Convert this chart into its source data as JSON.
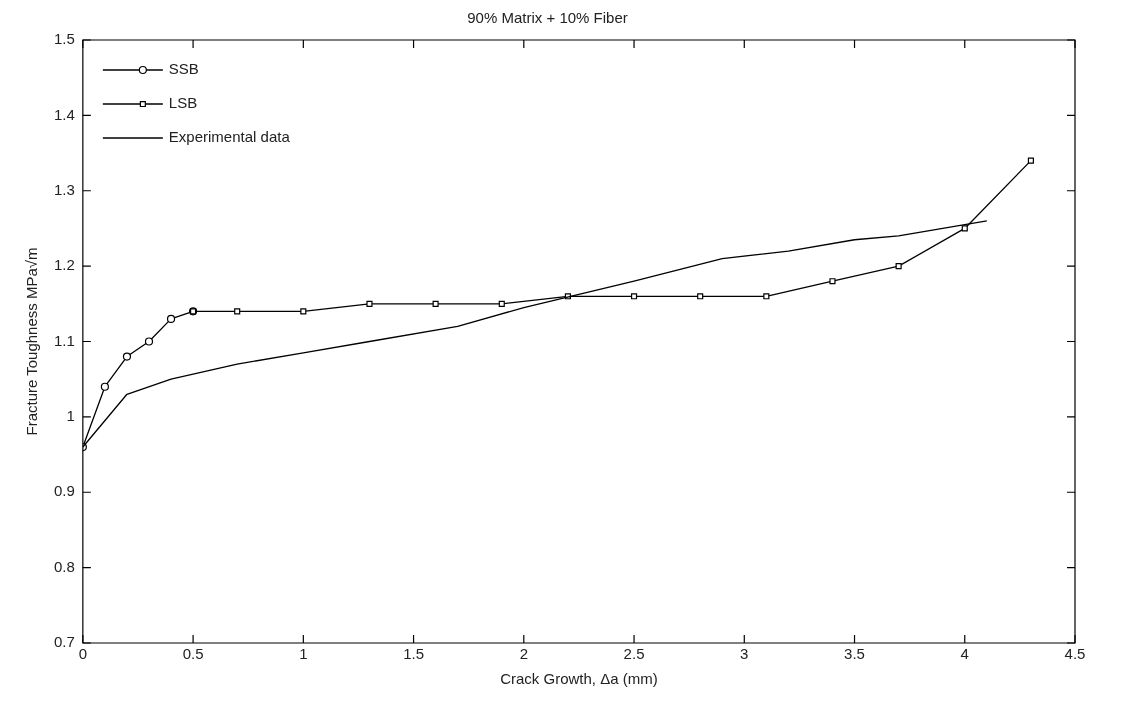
{
  "chart_data": {
    "type": "line",
    "title": "90% Matrix + 10% Fiber",
    "xlabel": "Crack Growth, Δa (mm)",
    "ylabel": "Fracture Toughness MPa√m",
    "xlim": [
      0,
      4.5
    ],
    "xticks": [
      0,
      0.5,
      1,
      1.5,
      2,
      2.5,
      3,
      3.5,
      4,
      4.5
    ],
    "ylim": [
      0.7,
      1.5
    ],
    "yticks": [
      {
        "value": 0.7,
        "label": "0.7"
      },
      {
        "value": 0.8,
        "label": "0.8"
      },
      {
        "value": 0.9,
        "label": "0.9"
      },
      {
        "value": 1,
        "label": "1"
      },
      {
        "value": 1.1,
        "label": "1.1"
      },
      {
        "value": 1.2,
        "label": "1.2"
      },
      {
        "value": 1.3,
        "label": "1.3"
      },
      {
        "value": 1.4,
        "label": "1.4"
      },
      {
        "value": 1.5,
        "label": "1.5"
      }
    ],
    "grid": false,
    "legend": "top left",
    "series": [
      {
        "name": "SSB",
        "color": "#000000",
        "marker": "circle",
        "x": [
          0,
          0.1,
          0.2,
          0.3,
          0.4,
          0.5
        ],
        "values": [
          0.96,
          1.04,
          1.08,
          1.1,
          1.13,
          1.14
        ]
      },
      {
        "name": "LSB",
        "color": "#000000",
        "marker": "square",
        "x": [
          0.5,
          0.7,
          1,
          1.3,
          1.6,
          1.9,
          2.2,
          2.5,
          2.8,
          3.1,
          3.4,
          3.7,
          4,
          4.3
        ],
        "values": [
          1.14,
          1.14,
          1.14,
          1.15,
          1.15,
          1.15,
          1.16,
          1.16,
          1.16,
          1.16,
          1.18,
          1.2,
          1.25,
          1.34
        ]
      },
      {
        "name": "Experimental data",
        "color": "#000000",
        "marker": "none",
        "x": [
          0,
          0.2,
          0.4,
          0.7,
          1,
          1.3,
          1.7,
          2,
          2.5,
          2.9,
          3.2,
          3.5,
          3.7,
          4.1
        ],
        "values": [
          0.96,
          1.03,
          1.05,
          1.07,
          1.085,
          1.1,
          1.12,
          1.145,
          1.18,
          1.21,
          1.22,
          1.235,
          1.24,
          1.26
        ]
      }
    ]
  }
}
